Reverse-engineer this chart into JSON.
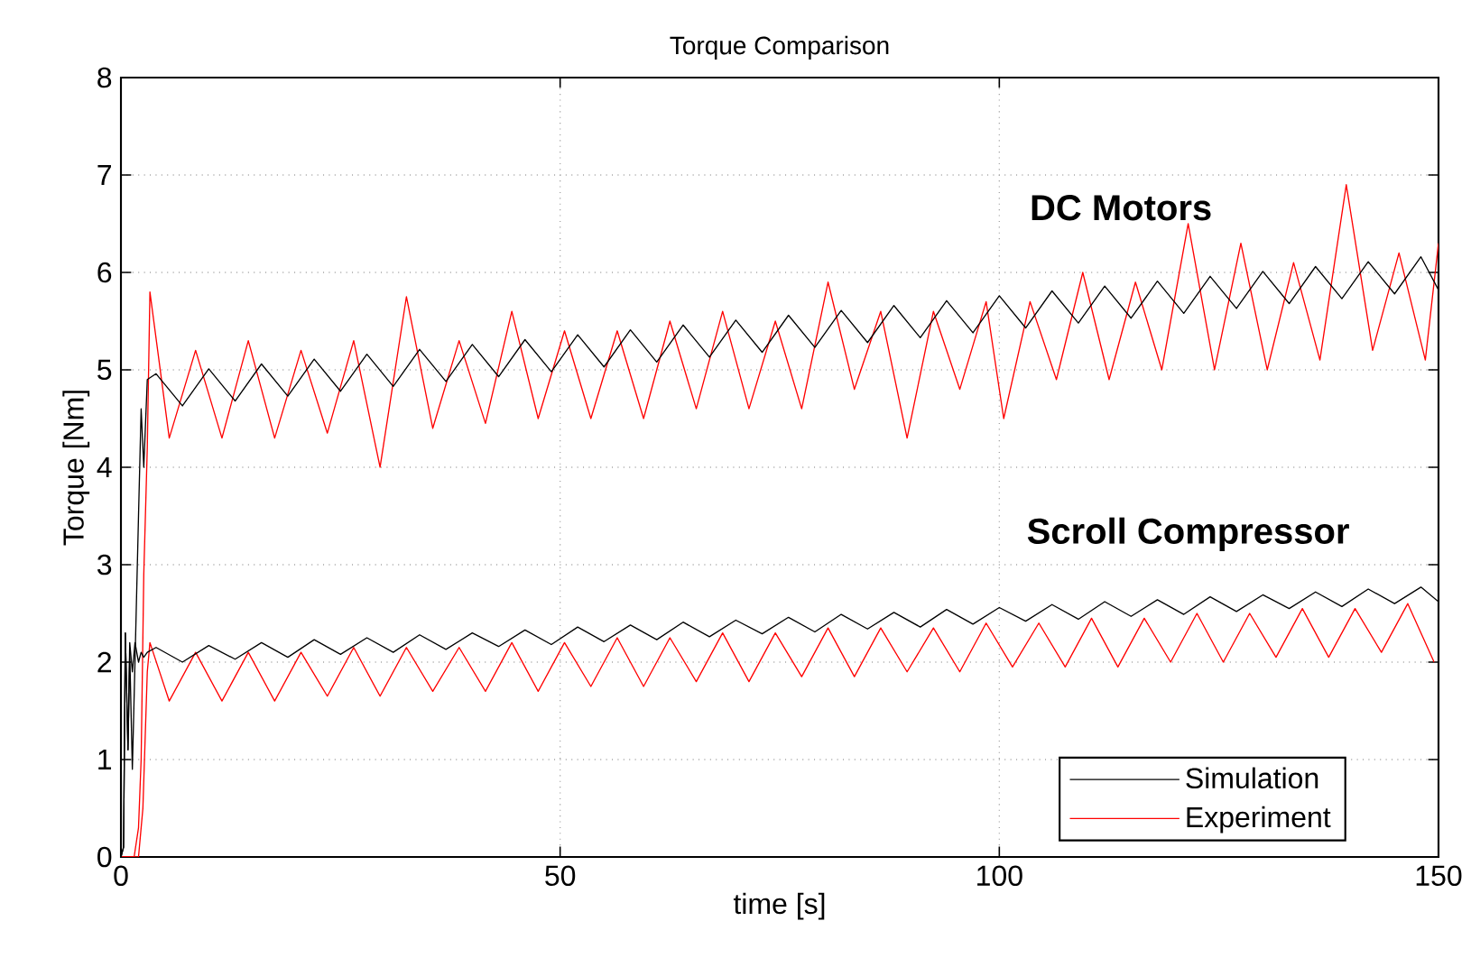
{
  "chart_data": {
    "type": "line",
    "title": "Torque Comparison",
    "xlabel": "time [s]",
    "ylabel": "Torque [Nm]",
    "xlim": [
      0,
      150
    ],
    "ylim": [
      0,
      8
    ],
    "xticks": [
      0,
      50,
      100,
      150
    ],
    "yticks": [
      0,
      1,
      2,
      3,
      4,
      5,
      6,
      7,
      8
    ],
    "grid": true,
    "legend": "bottom right",
    "annotations": [
      "DC Motors",
      "Scroll Compressor"
    ],
    "series": [
      {
        "name": "Simulation",
        "color": "#000000",
        "x": [
          0,
          0.3,
          0.5,
          0.8,
          1,
          1.3,
          1.6,
          2,
          2.3,
          2.6,
          3,
          4,
          7,
          10,
          13,
          16,
          19,
          22,
          25,
          28,
          31,
          34,
          37,
          40,
          43,
          46,
          49,
          52,
          55,
          58,
          61,
          64,
          67,
          70,
          73,
          76,
          79,
          82,
          85,
          88,
          91,
          94,
          97,
          100,
          103,
          106,
          109,
          112,
          115,
          118,
          121,
          124,
          127,
          130,
          133,
          136,
          139,
          142,
          145,
          148,
          150
        ],
        "values": [
          0,
          0.1,
          2.3,
          1.1,
          2.1,
          0.9,
          2.0,
          3.5,
          4.6,
          4.0,
          4.9,
          4.96,
          4.63,
          5.01,
          4.68,
          5.06,
          4.73,
          5.11,
          4.78,
          5.16,
          4.83,
          5.21,
          4.88,
          5.26,
          4.93,
          5.31,
          4.98,
          5.36,
          5.03,
          5.41,
          5.08,
          5.46,
          5.13,
          5.51,
          5.18,
          5.56,
          5.23,
          5.61,
          5.28,
          5.66,
          5.33,
          5.71,
          5.38,
          5.76,
          5.43,
          5.81,
          5.48,
          5.86,
          5.53,
          5.91,
          5.58,
          5.96,
          5.63,
          6.01,
          5.68,
          6.06,
          5.73,
          6.11,
          5.78,
          6.16,
          5.82
        ]
      },
      {
        "color": "#000000",
        "x": [
          0,
          0.3,
          0.5,
          0.8,
          1,
          1.3,
          1.6,
          2,
          2.3,
          2.6,
          3,
          4,
          7,
          10,
          13,
          16,
          19,
          22,
          25,
          28,
          31,
          34,
          37,
          40,
          43,
          46,
          49,
          52,
          55,
          58,
          61,
          64,
          67,
          70,
          73,
          76,
          79,
          82,
          85,
          88,
          91,
          94,
          97,
          100,
          103,
          106,
          109,
          112,
          115,
          118,
          121,
          124,
          127,
          130,
          133,
          136,
          139,
          142,
          145,
          148,
          150
        ],
        "values": [
          0,
          0.1,
          2.3,
          1.1,
          2.2,
          1.9,
          2.2,
          2.0,
          2.1,
          2.05,
          2.1,
          2.15,
          2.0,
          2.17,
          2.03,
          2.2,
          2.05,
          2.23,
          2.08,
          2.25,
          2.1,
          2.28,
          2.13,
          2.3,
          2.16,
          2.33,
          2.18,
          2.36,
          2.21,
          2.38,
          2.23,
          2.41,
          2.26,
          2.43,
          2.29,
          2.46,
          2.31,
          2.49,
          2.34,
          2.51,
          2.36,
          2.54,
          2.39,
          2.56,
          2.42,
          2.59,
          2.44,
          2.62,
          2.47,
          2.64,
          2.49,
          2.67,
          2.52,
          2.69,
          2.55,
          2.72,
          2.57,
          2.75,
          2.6,
          2.77,
          2.62
        ]
      },
      {
        "name": "Experiment",
        "color": "#ff0000",
        "x": [
          0,
          1.5,
          2,
          2.3,
          2.6,
          3,
          3.3,
          5.5,
          8.5,
          11.5,
          14.5,
          17.5,
          20.5,
          23.5,
          26.5,
          29.5,
          32.5,
          35.5,
          38.5,
          41.5,
          44.5,
          47.5,
          50.5,
          53.5,
          56.5,
          59.5,
          62.5,
          65.5,
          68.5,
          71.5,
          74.5,
          77.5,
          80.5,
          83.5,
          86.5,
          89.5,
          92.5,
          95.5,
          98.5,
          100.5,
          103.5,
          106.5,
          109.5,
          112.5,
          115.5,
          118.5,
          121.5,
          124.5,
          127.5,
          130.5,
          133.5,
          136.5,
          139.5,
          142.5,
          145.5,
          148.5,
          150
        ],
        "values": [
          0,
          0,
          0.3,
          1.0,
          2.9,
          4.2,
          5.8,
          4.3,
          5.2,
          4.3,
          5.3,
          4.3,
          5.2,
          4.35,
          5.3,
          4.0,
          5.75,
          4.4,
          5.3,
          4.45,
          5.6,
          4.5,
          5.4,
          4.5,
          5.4,
          4.5,
          5.5,
          4.6,
          5.6,
          4.6,
          5.5,
          4.6,
          5.9,
          4.8,
          5.6,
          4.3,
          5.6,
          4.8,
          5.7,
          4.5,
          5.7,
          4.9,
          6.0,
          4.9,
          5.9,
          5.0,
          6.5,
          5.0,
          6.3,
          5.0,
          6.1,
          5.1,
          6.9,
          5.2,
          6.2,
          5.1,
          6.3
        ]
      },
      {
        "color": "#ff0000",
        "x": [
          0,
          2,
          2.5,
          3,
          3.3,
          5.5,
          8.5,
          11.5,
          14.5,
          17.5,
          20.5,
          23.5,
          26.5,
          29.5,
          32.5,
          35.5,
          38.5,
          41.5,
          44.5,
          47.5,
          50.5,
          53.5,
          56.5,
          59.5,
          62.5,
          65.5,
          68.5,
          71.5,
          74.5,
          77.5,
          80.5,
          83.5,
          86.5,
          89.5,
          92.5,
          95.5,
          98.5,
          101.5,
          104.5,
          107.5,
          110.5,
          113.5,
          116.5,
          119.5,
          122.5,
          125.5,
          128.5,
          131.5,
          134.5,
          137.5,
          140.5,
          143.5,
          146.5,
          149.5
        ],
        "values": [
          0,
          0,
          0.5,
          1.9,
          2.2,
          1.6,
          2.1,
          1.6,
          2.1,
          1.6,
          2.1,
          1.65,
          2.15,
          1.65,
          2.15,
          1.7,
          2.15,
          1.7,
          2.2,
          1.7,
          2.2,
          1.75,
          2.25,
          1.75,
          2.25,
          1.8,
          2.3,
          1.8,
          2.3,
          1.85,
          2.35,
          1.85,
          2.35,
          1.9,
          2.35,
          1.9,
          2.4,
          1.95,
          2.4,
          1.95,
          2.45,
          1.95,
          2.45,
          2.0,
          2.5,
          2.0,
          2.5,
          2.05,
          2.55,
          2.05,
          2.55,
          2.1,
          2.6,
          2.0
        ]
      }
    ]
  }
}
